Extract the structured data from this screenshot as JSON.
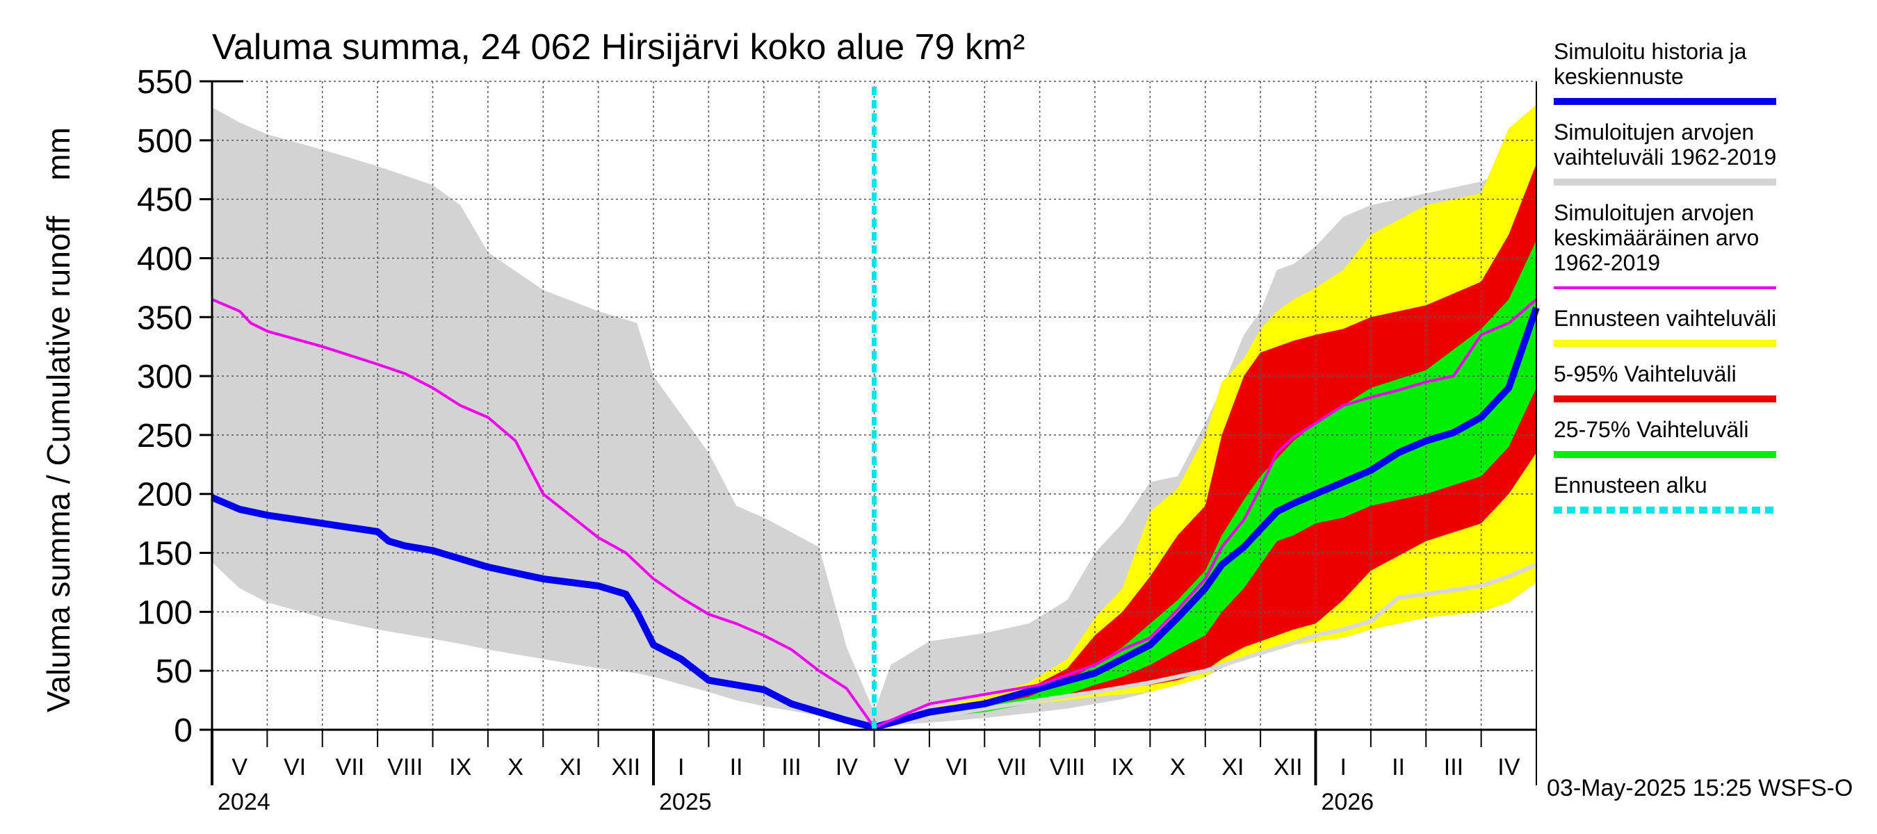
{
  "chart_data": {
    "type": "area",
    "title": "Valuma summa, 24 062 Hirsijärvi koko alue 79 km²",
    "ylabel": "Valuma summa / Cumulative runoff    mm",
    "ylim": [
      0,
      550
    ],
    "y_ticks": [
      0,
      50,
      100,
      150,
      200,
      250,
      300,
      350,
      400,
      450,
      500,
      550
    ],
    "grid": true,
    "x_start_month_index": 0,
    "months": [
      "V",
      "VI",
      "VII",
      "VIII",
      "IX",
      "X",
      "XI",
      "XII",
      "I",
      "II",
      "III",
      "IV",
      "V",
      "VI",
      "VII",
      "VIII",
      "IX",
      "X",
      "XI",
      "XII",
      "I",
      "II",
      "III",
      "IV"
    ],
    "years": [
      {
        "label": "2024",
        "month_index": 0
      },
      {
        "label": "2025",
        "month_index": 8
      },
      {
        "label": "2026",
        "month_index": 20
      }
    ],
    "forecast_start_month": 12.0,
    "footer": "03-May-2025 15:25 WSFS-O",
    "colors": {
      "history": "#0000ee",
      "range_1962_2019": "#d3d3d3",
      "mean_1962_2019": "#ee00ee",
      "forecast_range": "#ffff00",
      "p5_95": "#ee0000",
      "p25_75": "#00ee00",
      "forecast_start": "#00e5ee",
      "lowline": "#d8d8d8"
    },
    "legend": [
      {
        "label": "Simuloitu historia ja keskiennuste",
        "lines": [
          "Simuloitu historia ja",
          "keskiennuste"
        ],
        "color": "#0000ee",
        "style": "solid"
      },
      {
        "label": "Simuloitujen arvojen vaihteluväli 1962-2019",
        "lines": [
          "Simuloitujen arvojen",
          "vaihteluväli 1962-2019"
        ],
        "color": "#d3d3d3",
        "style": "solid"
      },
      {
        "label": "Simuloitujen arvojen keskimääräinen arvo 1962-2019",
        "lines": [
          "Simuloitujen arvojen",
          "keskimääräinen arvo",
          "   1962-2019"
        ],
        "color": "#ee00ee",
        "style": "thin"
      },
      {
        "label": "Ennusteen vaihteluväli",
        "lines": [
          "Ennusteen vaihteluväli"
        ],
        "color": "#ffff00",
        "style": "solid"
      },
      {
        "label": "5-95% Vaihteluväli",
        "lines": [
          "5-95% Vaihteluväli"
        ],
        "color": "#ee0000",
        "style": "solid"
      },
      {
        "label": "25-75% Vaihteluväli",
        "lines": [
          "25-75% Vaihteluväli"
        ],
        "color": "#00ee00",
        "style": "solid"
      },
      {
        "label": "Ennusteen alku",
        "lines": [
          "Ennusteen alku"
        ],
        "color": "#00e5ee",
        "style": "dashed"
      }
    ],
    "series": [
      {
        "name": "Simuloitujen arvojen vaihteluväli 1962-2019",
        "kind": "band",
        "x": [
          0,
          0.5,
          1,
          2,
          3,
          4,
          4.5,
          5,
          6,
          7,
          7.7,
          8,
          9,
          9.5,
          10,
          11,
          11.5,
          12,
          12.3,
          13,
          14,
          14.8,
          15.5,
          16,
          16.5,
          17,
          17.5,
          18,
          18.3,
          18.7,
          19,
          19.3,
          19.6,
          20,
          20.5,
          21,
          22,
          23,
          23.5,
          24
        ],
        "upper": [
          528,
          515,
          505,
          492,
          478,
          462,
          445,
          405,
          373,
          355,
          345,
          300,
          235,
          190,
          180,
          155,
          70,
          15,
          55,
          75,
          82,
          90,
          110,
          150,
          175,
          210,
          215,
          260,
          290,
          335,
          355,
          390,
          395,
          410,
          435,
          445,
          455,
          465,
          475,
          530
        ],
        "lower": [
          142,
          120,
          108,
          95,
          85,
          77,
          73,
          68,
          60,
          52,
          48,
          45,
          32,
          25,
          20,
          12,
          8,
          3,
          4,
          6,
          10,
          14,
          18,
          22,
          26,
          32,
          38,
          45,
          52,
          60,
          65,
          72,
          80,
          90,
          95,
          98,
          100,
          110,
          118,
          125
        ]
      },
      {
        "name": "Ennusteen vaihteluväli",
        "kind": "band",
        "x": [
          12,
          13,
          14,
          14.8,
          15.5,
          16,
          16.5,
          17,
          17.5,
          18,
          18.3,
          18.7,
          19,
          19.3,
          19.6,
          20,
          20.5,
          21,
          22,
          23,
          23.5,
          24
        ],
        "upper": [
          2,
          18,
          28,
          40,
          60,
          95,
          120,
          185,
          205,
          250,
          295,
          315,
          340,
          355,
          365,
          375,
          390,
          420,
          445,
          455,
          510,
          530
        ],
        "lower": [
          2,
          10,
          16,
          22,
          25,
          28,
          30,
          32,
          38,
          45,
          55,
          60,
          65,
          70,
          72,
          75,
          78,
          85,
          95,
          100,
          108,
          125
        ]
      },
      {
        "name": "5-95% Vaihteluväli",
        "kind": "band",
        "x": [
          12,
          13,
          14,
          14.8,
          15.5,
          16,
          16.5,
          17,
          17.5,
          18,
          18.3,
          18.7,
          19,
          19.3,
          19.6,
          20,
          20.5,
          21,
          22,
          23,
          23.5,
          24
        ],
        "upper": [
          2,
          15,
          25,
          35,
          52,
          80,
          100,
          130,
          165,
          190,
          250,
          300,
          320,
          325,
          330,
          335,
          340,
          350,
          360,
          380,
          420,
          480
        ],
        "lower": [
          2,
          12,
          18,
          25,
          28,
          32,
          35,
          38,
          42,
          50,
          60,
          70,
          75,
          80,
          85,
          90,
          110,
          135,
          160,
          175,
          200,
          235
        ]
      },
      {
        "name": "25-75% Vaihteluväli",
        "kind": "band",
        "x": [
          12,
          13,
          14,
          14.8,
          15.5,
          16,
          16.5,
          17,
          17.5,
          18,
          18.3,
          18.7,
          19,
          19.3,
          19.6,
          20,
          20.5,
          21,
          22,
          23,
          23.5,
          24
        ],
        "upper": [
          2,
          13,
          20,
          28,
          42,
          55,
          70,
          90,
          110,
          135,
          165,
          195,
          215,
          230,
          245,
          260,
          275,
          290,
          305,
          340,
          365,
          415
        ],
        "lower": [
          2,
          10,
          15,
          22,
          30,
          38,
          45,
          55,
          68,
          80,
          100,
          120,
          140,
          160,
          165,
          175,
          180,
          190,
          200,
          215,
          240,
          290
        ]
      },
      {
        "name": "Alempi vertailuviiva",
        "kind": "line",
        "color": "#d8d8d8",
        "x": [
          12,
          13,
          14,
          15,
          16,
          17,
          18,
          19,
          19.5,
          20,
          20.5,
          21,
          21.5,
          22,
          23,
          23.5,
          24
        ],
        "values": [
          2,
          10,
          18,
          25,
          32,
          40,
          50,
          65,
          72,
          80,
          85,
          92,
          112,
          115,
          122,
          130,
          140
        ]
      },
      {
        "name": "Simuloitu historia ja keskiennuste",
        "kind": "line",
        "color": "#0000ee",
        "x": [
          0,
          0.5,
          1,
          2,
          3,
          3.2,
          3.5,
          4,
          4.5,
          5,
          5.5,
          6,
          7,
          7.5,
          7.7,
          8,
          8.5,
          9,
          9.5,
          10,
          10.5,
          11,
          11.5,
          12,
          13,
          14,
          15,
          16,
          16.5,
          17,
          17.5,
          18,
          18.3,
          18.7,
          19,
          19.3,
          19.6,
          20,
          20.5,
          21,
          21.5,
          22,
          22.5,
          23,
          23.5,
          24
        ],
        "values": [
          197,
          187,
          182,
          175,
          168,
          160,
          156,
          152,
          145,
          138,
          133,
          128,
          122,
          115,
          100,
          72,
          60,
          42,
          38,
          34,
          22,
          15,
          8,
          2,
          15,
          22,
          35,
          48,
          60,
          72,
          95,
          120,
          140,
          155,
          170,
          185,
          192,
          200,
          210,
          220,
          235,
          245,
          252,
          265,
          290,
          358
        ]
      },
      {
        "name": "Simuloitujen arvojen keskimääräinen arvo 1962-2019",
        "kind": "line",
        "color": "#ee00ee",
        "x": [
          0,
          0.5,
          0.7,
          1,
          2,
          3,
          3.5,
          4,
          4.5,
          5,
          5.5,
          6,
          7,
          7.5,
          8,
          8.5,
          9,
          9.5,
          10,
          10.5,
          11,
          11.5,
          12,
          13,
          14,
          15,
          16,
          16.5,
          17,
          17.5,
          18,
          18.3,
          18.7,
          19,
          19.3,
          19.6,
          20,
          20.5,
          21,
          21.5,
          22,
          22.5,
          23,
          23.5,
          24
        ],
        "values": [
          365,
          355,
          345,
          338,
          325,
          310,
          302,
          290,
          275,
          265,
          245,
          200,
          163,
          150,
          128,
          112,
          98,
          90,
          80,
          68,
          50,
          35,
          2,
          22,
          30,
          38,
          55,
          68,
          78,
          102,
          128,
          155,
          178,
          205,
          235,
          248,
          260,
          275,
          282,
          288,
          295,
          300,
          335,
          345,
          365
        ]
      }
    ]
  }
}
